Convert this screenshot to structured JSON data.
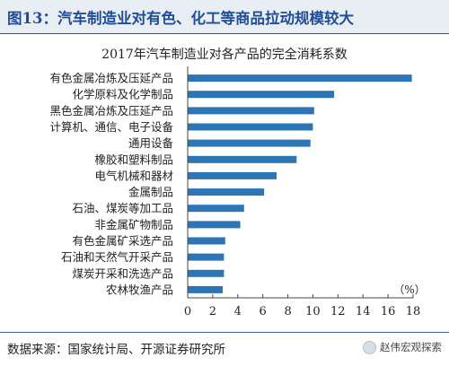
{
  "header": {
    "title": "图13：汽车制造业对有色、化工等商品拉动规模较大"
  },
  "footer": {
    "source": "数据来源：国家统计局、开源证券研究所",
    "watermark": "赵伟宏观探索",
    "watermark_icon": "wechat-account-icon"
  },
  "colors": {
    "bar": "#2e75b6",
    "header_bg": "#e9edf4",
    "header_text": "#1f4e96"
  },
  "chart_data": {
    "type": "bar",
    "orientation": "horizontal",
    "title": "2017年汽车制造业对各产品的完全消耗系数",
    "unit_label": "（%）",
    "xlim": [
      0,
      18
    ],
    "xticks": [
      0,
      2,
      4,
      6,
      8,
      10,
      12,
      14,
      16,
      18
    ],
    "grid": false,
    "categories": [
      "有色金属冶炼及压延产品",
      "化学原料及化学制品",
      "黑色金属冶炼及压延产品",
      "计算机、通信、电子设备",
      "通用设备",
      "橡胶和塑料制品",
      "电气机械和器材",
      "金属制品",
      "石油、煤炭等加工品",
      "非金属矿物制品",
      "有色金属矿采选产品",
      "石油和天然气开采产品",
      "煤炭开采和洗选产品",
      "农林牧渔产品"
    ],
    "values": [
      17.9,
      11.7,
      10.1,
      10.0,
      9.8,
      8.7,
      7.1,
      6.1,
      4.5,
      4.2,
      3.0,
      2.9,
      2.9,
      2.8
    ]
  }
}
